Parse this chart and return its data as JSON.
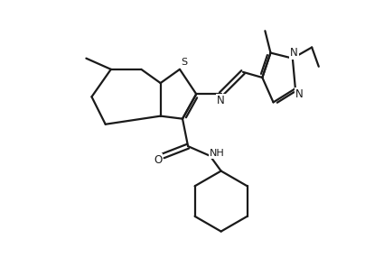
{
  "bg_color": "#ffffff",
  "line_color": "#1a1a1a",
  "line_width": 1.6,
  "fig_width": 4.04,
  "fig_height": 3.06,
  "dpi": 100,
  "xlim": [
    0,
    100
  ],
  "ylim": [
    0,
    100
  ]
}
